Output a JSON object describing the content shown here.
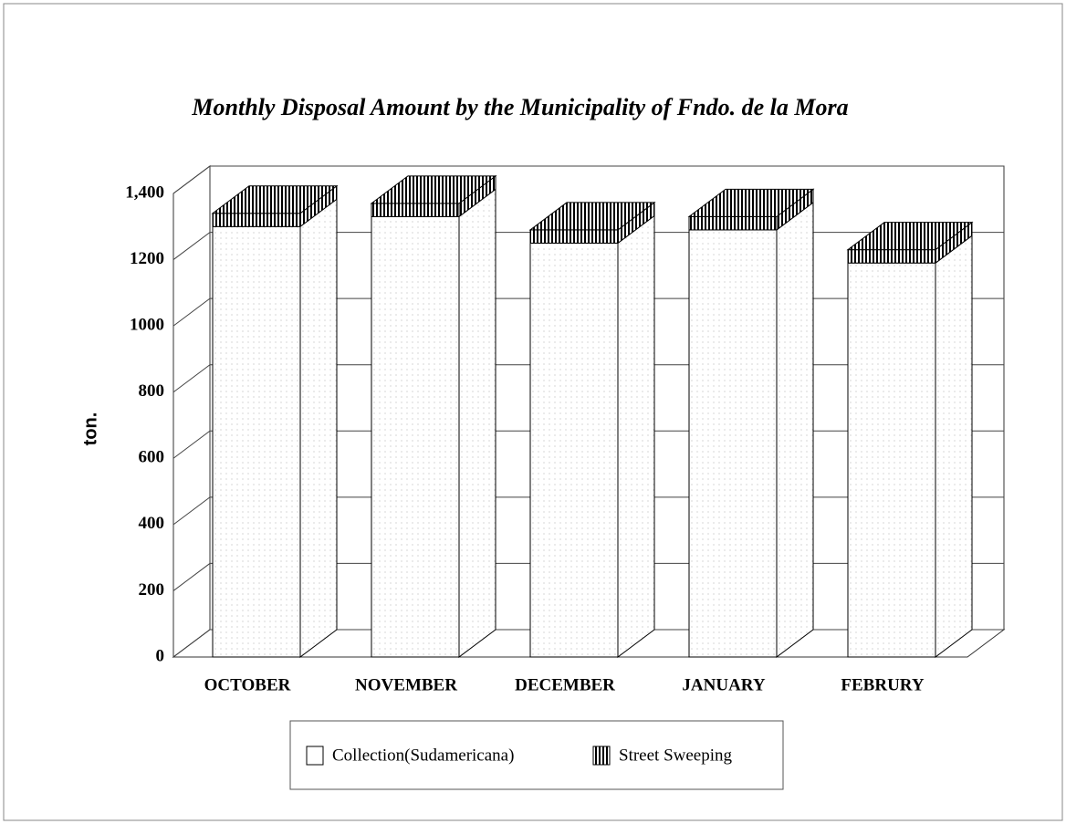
{
  "chart_data": {
    "type": "bar3d_stacked",
    "title": "Monthly Disposal Amount by the Municipality of Fndo. de la Mora",
    "y_label": "ton.",
    "categories": [
      "OCTOBER",
      "NOVEMBER",
      "DECEMBER",
      "JANUARY",
      "FEBRURY"
    ],
    "series": [
      {
        "name": "Collection(Sudamericana)",
        "color": "#ffffff",
        "values": [
          1300,
          1330,
          1250,
          1290,
          1190
        ]
      },
      {
        "name": "Street Sweeping",
        "color": "#000000",
        "values": [
          40,
          40,
          40,
          40,
          40
        ]
      }
    ],
    "ylim": [
      0,
      1400
    ],
    "yticks": [
      0,
      200,
      400,
      600,
      800,
      1000,
      1200,
      {
        "value": 1400,
        "label": "1,400"
      }
    ],
    "grid": true
  }
}
